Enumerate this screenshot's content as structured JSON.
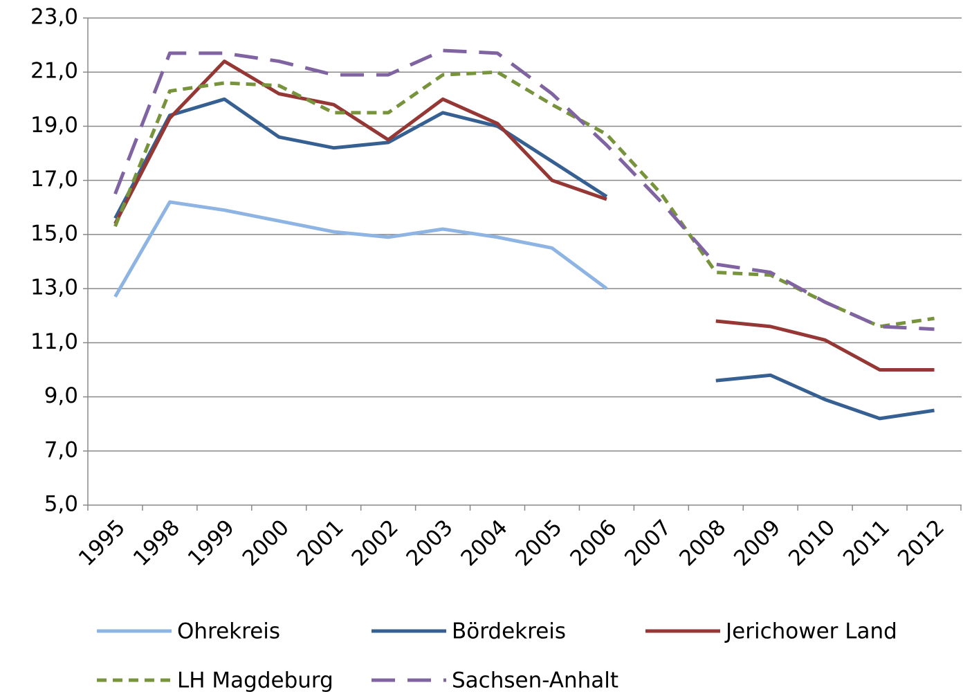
{
  "chart_data": {
    "type": "line",
    "categories": [
      "1995",
      "1998",
      "1999",
      "2000",
      "2001",
      "2002",
      "2003",
      "2004",
      "2005",
      "2006",
      "2007",
      "2008",
      "2009",
      "2010",
      "2011",
      "2012"
    ],
    "series": [
      {
        "name": "Ohrekreis",
        "color": "#8db4e2",
        "line_style": "solid",
        "values": [
          12.7,
          16.2,
          15.9,
          15.5,
          15.1,
          14.9,
          15.2,
          14.9,
          14.5,
          13.0,
          null,
          null,
          null,
          null,
          null,
          null
        ]
      },
      {
        "name": "Bördekreis",
        "color": "#376092",
        "line_style": "solid",
        "values": [
          15.6,
          19.4,
          20.0,
          18.6,
          18.2,
          18.4,
          19.5,
          19.0,
          17.7,
          16.4,
          null,
          9.6,
          9.8,
          8.9,
          8.2,
          8.5
        ]
      },
      {
        "name": "Jerichower Land",
        "color": "#953735",
        "line_style": "solid",
        "values": [
          15.4,
          19.3,
          21.4,
          20.2,
          19.8,
          18.5,
          20.0,
          19.1,
          17.0,
          16.3,
          null,
          11.8,
          11.6,
          11.1,
          10.0,
          10.0
        ]
      },
      {
        "name": "LH Magdeburg",
        "color": "#77933c",
        "line_style": "dashed",
        "values": [
          15.3,
          20.3,
          20.6,
          20.5,
          19.5,
          19.5,
          20.9,
          21.0,
          19.8,
          18.7,
          16.5,
          13.6,
          13.5,
          12.5,
          11.6,
          11.9
        ]
      },
      {
        "name": "Sachsen-Anhalt",
        "color": "#8064a2",
        "line_style": "long-dashed",
        "values": [
          16.5,
          21.7,
          21.7,
          21.4,
          20.9,
          20.9,
          21.8,
          21.7,
          20.2,
          18.3,
          16.2,
          13.9,
          13.6,
          12.5,
          11.6,
          11.5
        ]
      }
    ],
    "ylim": [
      5,
      23
    ],
    "yticks": [
      {
        "value": 5,
        "label": "5,0"
      },
      {
        "value": 7,
        "label": "7,0"
      },
      {
        "value": 9,
        "label": "9,0"
      },
      {
        "value": 11,
        "label": "11,0"
      },
      {
        "value": 13,
        "label": "13,0"
      },
      {
        "value": 15,
        "label": "15,0"
      },
      {
        "value": 17,
        "label": "17,0"
      },
      {
        "value": 19,
        "label": "19,0"
      },
      {
        "value": 21,
        "label": "21,0"
      },
      {
        "value": 23,
        "label": "23,0"
      }
    ],
    "grid": true,
    "legend": "bottom"
  }
}
